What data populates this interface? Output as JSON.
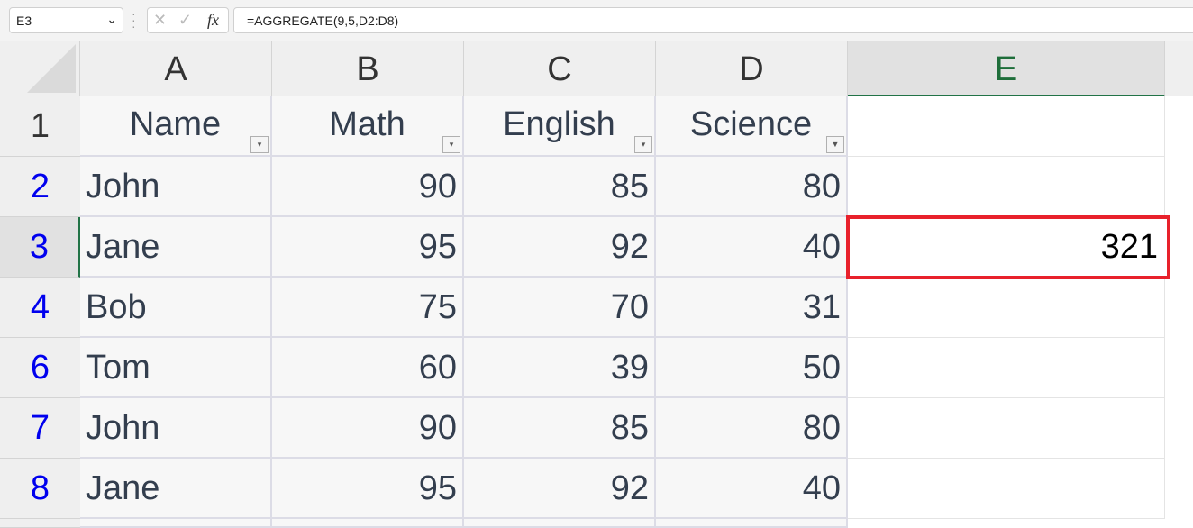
{
  "name_box": "E3",
  "formula": "=AGGREGATE(9,5,D2:D8)",
  "columns": [
    "A",
    "B",
    "C",
    "D",
    "E"
  ],
  "headers": [
    "Name",
    "Math",
    "English",
    "Science"
  ],
  "rows": [
    {
      "num": "2",
      "cells": [
        "John",
        "90",
        "85",
        "80"
      ]
    },
    {
      "num": "3",
      "cells": [
        "Jane",
        "95",
        "92",
        "40"
      ]
    },
    {
      "num": "4",
      "cells": [
        "Bob",
        "75",
        "70",
        "31"
      ]
    },
    {
      "num": "6",
      "cells": [
        "Tom",
        "60",
        "39",
        "50"
      ]
    },
    {
      "num": "7",
      "cells": [
        "John",
        "90",
        "85",
        "80"
      ]
    },
    {
      "num": "8",
      "cells": [
        "Jane",
        "95",
        "92",
        "40"
      ]
    }
  ],
  "header_row_num": "1",
  "selected_value": "321",
  "colors": {
    "selection_highlight": "#e8212b",
    "filtered_row_number": "#0000ee",
    "active_accent": "#217346"
  }
}
